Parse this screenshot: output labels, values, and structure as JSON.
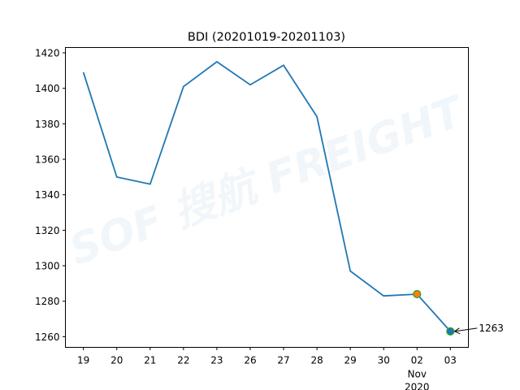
{
  "chart_data": {
    "type": "line",
    "title": "BDI (20201019-20201103)",
    "xlabel": "",
    "ylabel": "",
    "categories": [
      "19",
      "20",
      "21",
      "22",
      "23",
      "26",
      "27",
      "28",
      "29",
      "30",
      "02",
      "03"
    ],
    "x_sublabel": [
      "Nov",
      "2020"
    ],
    "values": [
      1409,
      1350,
      1346,
      1401,
      1415,
      1402,
      1413,
      1384,
      1297,
      1283,
      1284,
      1263
    ],
    "ylim": [
      1254,
      1423
    ],
    "yticks": [
      1260,
      1280,
      1300,
      1320,
      1340,
      1360,
      1380,
      1400,
      1420
    ],
    "grid": false,
    "line_color": "#1f77b4",
    "markers": [
      {
        "category": "02",
        "value": 1284,
        "fill": "#ff7f0e",
        "edge": "#2ca02c"
      },
      {
        "category": "03",
        "value": 1263,
        "fill": "#1f77b4",
        "edge": "#2ca02c"
      }
    ],
    "annotation": {
      "category": "03",
      "value": 1263,
      "text": "1263"
    },
    "watermark": "SOF 搜航 FREIGHT"
  }
}
